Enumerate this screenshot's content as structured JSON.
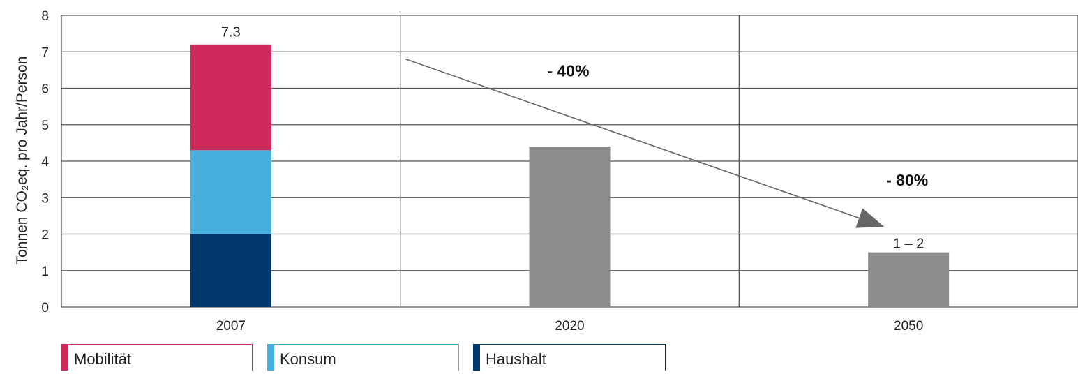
{
  "chart_data": {
    "type": "bar",
    "stacked": true,
    "categories": [
      "2007",
      "2020",
      "2050"
    ],
    "ylabel": "Tonnen CO₂eq. pro Jahr/Person",
    "ylim": [
      0,
      8
    ],
    "yticks": [
      "0",
      "1",
      "2",
      "3",
      "4",
      "5",
      "6",
      "7",
      "8"
    ],
    "grid": true,
    "series": [
      {
        "name": "Haushalt",
        "color": "#00386b",
        "values": [
          2.0,
          null,
          null
        ]
      },
      {
        "name": "Konsum",
        "color": "#47b0dc",
        "values": [
          2.3,
          null,
          null
        ]
      },
      {
        "name": "Mobilität",
        "color": "#cd2a5b",
        "values": [
          2.9,
          null,
          null
        ]
      },
      {
        "values": [
          null,
          4.4,
          1.5
        ],
        "color": "#8c8c8c"
      }
    ],
    "data_labels": [
      {
        "category": "2007",
        "text": "7.3",
        "value": 7.3
      },
      {
        "category": "2050",
        "text": "1 – 2",
        "value": 1.5
      }
    ],
    "annotations": [
      {
        "text": "- 40%",
        "near": "2020",
        "y": 6.5
      },
      {
        "text": "- 80%",
        "near": "2050",
        "y": 3.5
      }
    ],
    "arrow": {
      "from": {
        "category": "2020",
        "y": 6.8
      },
      "to": {
        "category": "2050",
        "y": 2.2
      }
    },
    "legend": {
      "placement": "bottom-left",
      "entries": [
        "Mobilität",
        "Konsum",
        "Haushalt"
      ]
    }
  }
}
